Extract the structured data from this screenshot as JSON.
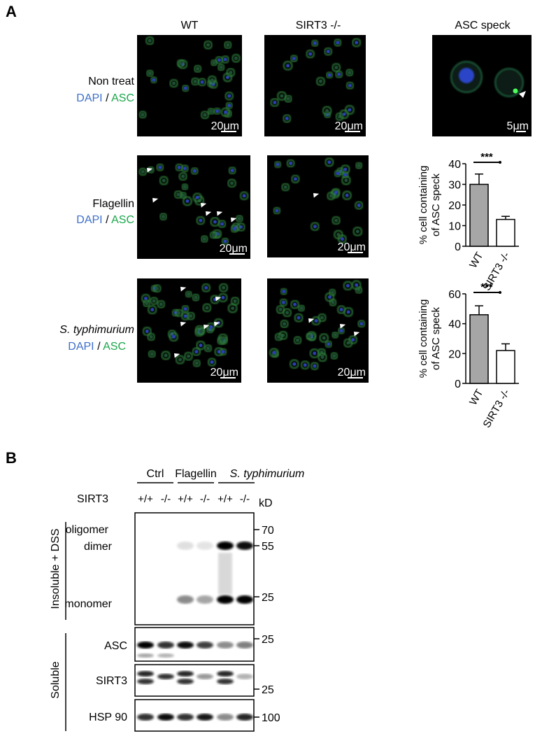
{
  "panel_a": {
    "label": "A",
    "columns": [
      "WT",
      "SIRT3 -/-",
      "ASC speck"
    ],
    "rows": [
      {
        "name": "Non treat",
        "stain_1": "DAPI",
        "separator": "/",
        "stain_2": "ASC"
      },
      {
        "name": "Flagellin",
        "stain_1": "DAPI",
        "separator": "/",
        "stain_2": "ASC"
      },
      {
        "name": "S. typhimurium",
        "stain_1": "DAPI",
        "separator": "/",
        "stain_2": "ASC"
      }
    ],
    "scale_bars": [
      "20μm",
      "20μm",
      "5μm",
      "20μm",
      "20μm",
      "20μm",
      "20μm"
    ]
  },
  "chart_data": [
    {
      "type": "bar",
      "ylabel": [
        "% cell containing",
        "of ASC speck"
      ],
      "categories": [
        "WT",
        "SIRT3 -/-"
      ],
      "values": [
        30,
        13
      ],
      "errors": [
        5,
        1.5
      ],
      "colors": [
        "#a6a6a6",
        "#ffffff"
      ],
      "ylim": [
        0,
        40
      ],
      "yticks": [
        0,
        10,
        20,
        30,
        40
      ],
      "significance": "***"
    },
    {
      "type": "bar",
      "ylabel": [
        "% cell containing",
        "of ASC speck"
      ],
      "categories": [
        "WT",
        "SIRT3 -/-"
      ],
      "values": [
        46,
        22
      ],
      "errors": [
        6,
        4.5
      ],
      "colors": [
        "#a6a6a6",
        "#ffffff"
      ],
      "ylim": [
        0,
        60
      ],
      "yticks": [
        0,
        20,
        40,
        60
      ],
      "significance": "***"
    }
  ],
  "panel_b": {
    "label": "B",
    "treatments": [
      "Ctrl",
      "Flagellin",
      "S. typhimurium"
    ],
    "genotype_label": "SIRT3",
    "genotypes": [
      "+/+",
      "-/-",
      "+/+",
      "-/-",
      "+/+",
      "-/-"
    ],
    "unit": "kD",
    "sections": [
      "Insoluble + DSS",
      "Soluble"
    ],
    "band_labels": [
      "oligomer",
      "dimer",
      "monomer"
    ],
    "blots": [
      "ASC",
      "SIRT3",
      "HSP 90"
    ],
    "markers": [
      70,
      55,
      25,
      25,
      25,
      100
    ]
  }
}
